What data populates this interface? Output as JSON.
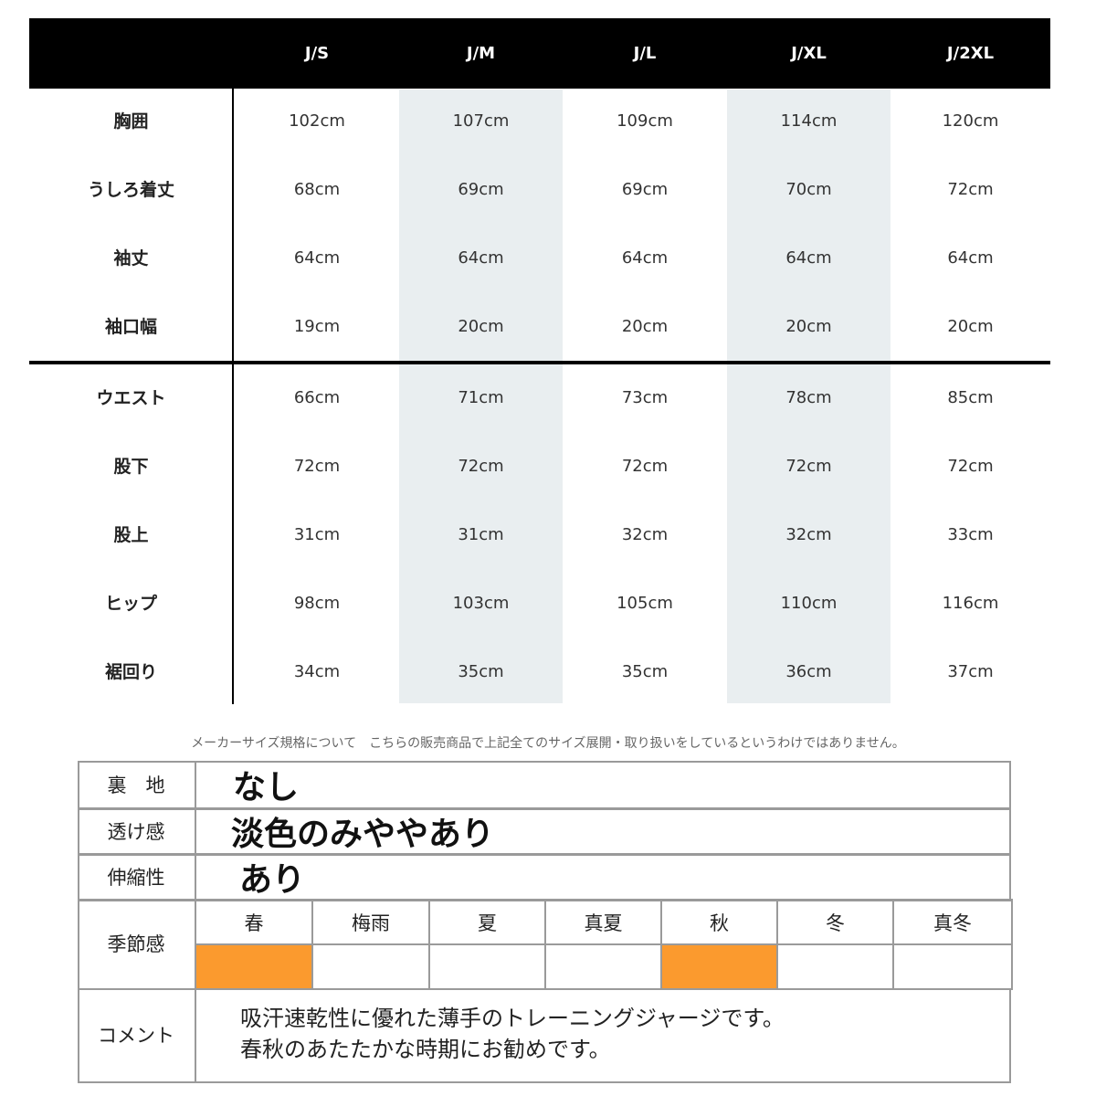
{
  "size_table": {
    "columns": [
      "J/S",
      "J/M",
      "J/L",
      "J/XL",
      "J/2XL"
    ],
    "top_rows": [
      {
        "label": "胸囲",
        "values": [
          "102cm",
          "107cm",
          "109cm",
          "114cm",
          "120cm"
        ]
      },
      {
        "label": "うしろ着丈",
        "values": [
          "68cm",
          "69cm",
          "69cm",
          "70cm",
          "72cm"
        ]
      },
      {
        "label": "袖丈",
        "values": [
          "64cm",
          "64cm",
          "64cm",
          "64cm",
          "64cm"
        ]
      },
      {
        "label": "袖口幅",
        "values": [
          "19cm",
          "20cm",
          "20cm",
          "20cm",
          "20cm"
        ]
      }
    ],
    "bottom_rows": [
      {
        "label": "ウエスト",
        "values": [
          "66cm",
          "71cm",
          "73cm",
          "78cm",
          "85cm"
        ]
      },
      {
        "label": "股下",
        "values": [
          "72cm",
          "72cm",
          "72cm",
          "72cm",
          "72cm"
        ]
      },
      {
        "label": "股上",
        "values": [
          "31cm",
          "31cm",
          "32cm",
          "32cm",
          "33cm"
        ]
      },
      {
        "label": "ヒップ",
        "values": [
          "98cm",
          "103cm",
          "105cm",
          "110cm",
          "116cm"
        ]
      },
      {
        "label": "裾回り",
        "values": [
          "34cm",
          "35cm",
          "35cm",
          "36cm",
          "37cm"
        ]
      }
    ],
    "shade_color": "#e9eef0"
  },
  "note": "メーカーサイズ規格について　こちらの販売商品で上記全てのサイズ展開・取り扱いをしているというわけではありません。",
  "spec": {
    "lining_label": "裏　地",
    "lining_value": "なし",
    "sheer_label": "透け感",
    "sheer_value": "淡色のみややあり",
    "stretch_label": "伸縮性",
    "stretch_value": "あり",
    "season_label": "季節感",
    "seasons": [
      {
        "name": "春",
        "active": true
      },
      {
        "name": "梅雨",
        "active": false
      },
      {
        "name": "夏",
        "active": false
      },
      {
        "name": "真夏",
        "active": false
      },
      {
        "name": "秋",
        "active": true
      },
      {
        "name": "冬",
        "active": false
      },
      {
        "name": "真冬",
        "active": false
      }
    ],
    "season_active_color": "#fb9a2e",
    "comment_label": "コメント",
    "comment_lines": [
      "吸汗速乾性に優れた薄手のトレーニングジャージです。",
      "春秋のあたたかな時期にお勧めです。"
    ]
  }
}
